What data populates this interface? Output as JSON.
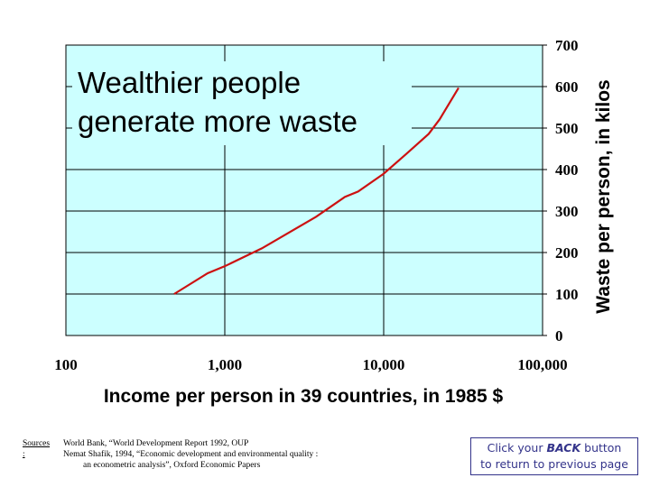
{
  "chart_data": {
    "type": "line",
    "title": "Wealthier people generate more waste",
    "title_lines": [
      "Wealthier people",
      "generate more waste"
    ],
    "xlabel": "Income per person in 39 countries, in 1985 $",
    "ylabel": "Waste per person, in kilos",
    "x_scale": "log",
    "xlim": [
      100,
      100000
    ],
    "ylim": [
      0,
      700
    ],
    "x_ticks": [
      "100",
      "1,000",
      "10,000",
      "100,000"
    ],
    "y_ticks": [
      "0",
      "100",
      "200",
      "300",
      "400",
      "500",
      "600",
      "700"
    ],
    "y_axis_side": "right",
    "grid": true,
    "plot_background": "#ccffff",
    "line_color": "#cc1111",
    "series": [
      {
        "x": [
          480,
          780,
          1000,
          1710,
          3750,
          5700,
          6900,
          10000,
          13900,
          19200,
          22500,
          29600
        ],
        "y": [
          100,
          150,
          167,
          210,
          286,
          334,
          347,
          390,
          438,
          486,
          521,
          597
        ]
      }
    ]
  },
  "sources": {
    "label": "Sources :",
    "lines": [
      "World Bank, “World Development Report 1992, OUP",
      "Nemat Shafik, 1994, “Economic development and environmental quality :",
      "an econometric analysis”, Oxford Economic Papers"
    ]
  },
  "back_button": {
    "prefix": "Click your ",
    "emphasis": "BACK",
    "suffix": " button",
    "line2": "to return to previous page"
  }
}
